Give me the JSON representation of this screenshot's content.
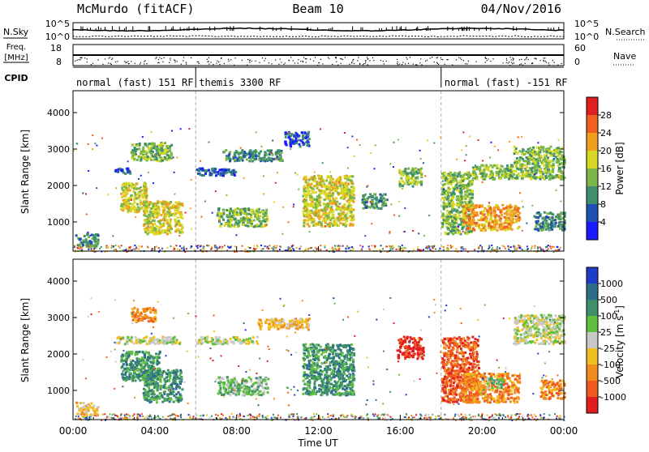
{
  "header": {
    "station": "McMurdo (fitACF)",
    "beam": "Beam 10",
    "date": "04/Nov/2016"
  },
  "strip": {
    "nsky_label": "N.Sky",
    "nsearch_label": "N.Search",
    "nsky_ticks": [
      "10^5",
      "10^0"
    ],
    "nsearch_ticks": [
      "10^5",
      "10^0"
    ],
    "freq_label_1": "Freq.",
    "freq_label_2": "[MHz]",
    "freq_ticks": [
      "18",
      "8"
    ],
    "nave_label": "Nave",
    "nave_ticks": [
      "60",
      "0"
    ],
    "cpid_label": "CPID",
    "cpid_segments": [
      {
        "label": "normal (fast) 151 RF",
        "start": 0,
        "end": 6
      },
      {
        "label": "themis 3300 RF",
        "start": 6,
        "end": 18
      },
      {
        "label": "normal (fast) -151 RF",
        "start": 18,
        "end": 24
      }
    ]
  },
  "chart_data": [
    {
      "type": "heatmap",
      "name": "power",
      "ylabel": "Slant Range [km]",
      "ylim": [
        200,
        4600
      ],
      "yticks": [
        "1000",
        "2000",
        "3000",
        "4000"
      ],
      "xlim": [
        0,
        24
      ],
      "colorbar": {
        "label": "Power [dB]",
        "ticks": [
          "4",
          "8",
          "12",
          "16",
          "20",
          "24",
          "28"
        ],
        "colors": [
          "#1a1aff",
          "#2050b0",
          "#3f8f6a",
          "#7ab648",
          "#d8d820",
          "#f0a020",
          "#f06020",
          "#e02020"
        ]
      },
      "regions": [
        {
          "t0": 0.1,
          "t1": 1.2,
          "r0": 350,
          "r1": 700,
          "level": 2
        },
        {
          "t0": 2.0,
          "t1": 2.8,
          "r0": 2350,
          "r1": 2500,
          "level": 1
        },
        {
          "t0": 2.3,
          "t1": 3.6,
          "r0": 1300,
          "r1": 2100,
          "level": 4
        },
        {
          "t0": 3.4,
          "t1": 5.3,
          "r0": 700,
          "r1": 1600,
          "level": 4
        },
        {
          "t0": 2.8,
          "t1": 4.8,
          "r0": 2700,
          "r1": 3200,
          "level": 3
        },
        {
          "t0": 6.0,
          "t1": 8.0,
          "r0": 2300,
          "r1": 2500,
          "level": 1
        },
        {
          "t0": 7.0,
          "t1": 9.5,
          "r0": 900,
          "r1": 1400,
          "level": 3
        },
        {
          "t0": 7.3,
          "t1": 10.2,
          "r0": 2700,
          "r1": 3000,
          "level": 2
        },
        {
          "t0": 10.3,
          "t1": 11.5,
          "r0": 3100,
          "r1": 3500,
          "level": 1
        },
        {
          "t0": 11.2,
          "t1": 13.7,
          "r0": 900,
          "r1": 2300,
          "level": 4
        },
        {
          "t0": 14.1,
          "t1": 15.3,
          "r0": 1400,
          "r1": 1800,
          "level": 2
        },
        {
          "t0": 15.9,
          "t1": 17.0,
          "r0": 2000,
          "r1": 2500,
          "level": 3
        },
        {
          "t0": 18.0,
          "t1": 19.5,
          "r0": 700,
          "r1": 2400,
          "level": 3
        },
        {
          "t0": 19.0,
          "t1": 21.8,
          "r0": 800,
          "r1": 1500,
          "level": 5
        },
        {
          "t0": 19.5,
          "t1": 24.0,
          "r0": 2200,
          "r1": 2600,
          "level": 3
        },
        {
          "t0": 21.5,
          "t1": 24.0,
          "r0": 2600,
          "r1": 3100,
          "level": 3
        },
        {
          "t0": 22.5,
          "t1": 24.0,
          "r0": 800,
          "r1": 1300,
          "level": 2
        }
      ]
    },
    {
      "type": "heatmap",
      "name": "velocity",
      "ylabel": "Slant Range [km]",
      "ylim": [
        200,
        4600
      ],
      "yticks": [
        "1000",
        "2000",
        "3000",
        "4000"
      ],
      "xlim": [
        0,
        24
      ],
      "xticks": [
        "00:00",
        "04:00",
        "08:00",
        "12:00",
        "16:00",
        "20:00",
        "00:00"
      ],
      "xlabel": "Time UT",
      "colorbar": {
        "label": "Velocity [m s",
        "label_sup": "-1",
        "label_end": "]",
        "ticks": [
          "1000",
          "500",
          "100",
          "25",
          "-25",
          "-100",
          "-500",
          "-1000"
        ],
        "colors": [
          "#1e3cc8",
          "#2c6e8a",
          "#3f8f6a",
          "#5fc040",
          "#c8c8c8",
          "#f0c020",
          "#f08c1e",
          "#f05a1e",
          "#e01e1e"
        ]
      },
      "regions": [
        {
          "t0": 0.1,
          "t1": 1.2,
          "r0": 350,
          "r1": 700,
          "level": 5
        },
        {
          "t0": 2.0,
          "t1": 5.2,
          "r0": 2300,
          "r1": 2500,
          "level": 4
        },
        {
          "t0": 2.3,
          "t1": 4.2,
          "r0": 1300,
          "r1": 2100,
          "level": 2
        },
        {
          "t0": 3.4,
          "t1": 5.3,
          "r0": 700,
          "r1": 1600,
          "level": 2
        },
        {
          "t0": 2.8,
          "t1": 4.0,
          "r0": 2900,
          "r1": 3300,
          "level": 6
        },
        {
          "t0": 6.0,
          "t1": 9.0,
          "r0": 2300,
          "r1": 2500,
          "level": 4
        },
        {
          "t0": 7.0,
          "t1": 9.5,
          "r0": 900,
          "r1": 1400,
          "level": 3
        },
        {
          "t0": 9.0,
          "t1": 11.5,
          "r0": 2700,
          "r1": 3000,
          "level": 5
        },
        {
          "t0": 11.2,
          "t1": 13.7,
          "r0": 900,
          "r1": 2300,
          "level": 2
        },
        {
          "t0": 15.8,
          "t1": 17.1,
          "r0": 1900,
          "r1": 2500,
          "level": 8
        },
        {
          "t0": 18.0,
          "t1": 19.8,
          "r0": 700,
          "r1": 2500,
          "level": 7
        },
        {
          "t0": 19.0,
          "t1": 21.8,
          "r0": 700,
          "r1": 1500,
          "level": 6
        },
        {
          "t0": 20.2,
          "t1": 21.0,
          "r0": 1100,
          "r1": 1400,
          "level": 3
        },
        {
          "t0": 21.5,
          "t1": 24.0,
          "r0": 2300,
          "r1": 3100,
          "level": 4
        },
        {
          "t0": 22.8,
          "t1": 24.0,
          "r0": 800,
          "r1": 1300,
          "level": 6
        }
      ]
    }
  ]
}
